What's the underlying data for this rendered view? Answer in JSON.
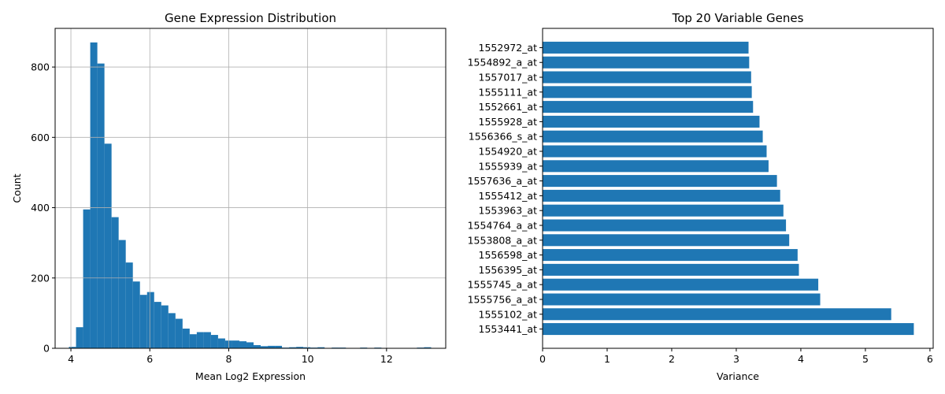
{
  "chart_data": [
    {
      "type": "bar",
      "subtype": "histogram",
      "title": "Gene Expression Distribution",
      "xlabel": "Mean Log2 Expression",
      "ylabel": "Count",
      "xlim": [
        3.6,
        13.5
      ],
      "ylim": [
        0,
        910
      ],
      "xticks": [
        4,
        6,
        8,
        10,
        12
      ],
      "yticks": [
        0,
        200,
        400,
        600,
        800
      ],
      "grid": true,
      "color": "#1f77b4",
      "bin_start": 3.95,
      "bin_width": 0.18,
      "counts": [
        4,
        60,
        395,
        870,
        810,
        582,
        373,
        308,
        244,
        190,
        152,
        160,
        132,
        122,
        100,
        84,
        56,
        40,
        46,
        46,
        38,
        28,
        22,
        22,
        20,
        17,
        9,
        6,
        7,
        7,
        2,
        3,
        4,
        3,
        2,
        3,
        1,
        2,
        2,
        1,
        1,
        2,
        1,
        2,
        1,
        0,
        1,
        1,
        0,
        2,
        3
      ]
    },
    {
      "type": "bar",
      "orientation": "horizontal",
      "title": "Top 20 Variable Genes",
      "xlabel": "Variance",
      "ylabel": "",
      "xlim": [
        0,
        6.05
      ],
      "xticks": [
        0,
        1,
        2,
        3,
        4,
        5,
        6
      ],
      "grid": false,
      "color": "#1f77b4",
      "categories": [
        "1552972_at",
        "1554892_a_at",
        "1557017_at",
        "1555111_at",
        "1552661_at",
        "1555928_at",
        "1556366_s_at",
        "1554920_at",
        "1555939_at",
        "1557636_a_at",
        "1555412_at",
        "1553963_at",
        "1554764_a_at",
        "1553808_a_at",
        "1556598_at",
        "1556395_at",
        "1555745_a_at",
        "1555756_a_at",
        "1555102_at",
        "1553441_at"
      ],
      "values": [
        3.19,
        3.2,
        3.23,
        3.24,
        3.26,
        3.36,
        3.41,
        3.47,
        3.5,
        3.63,
        3.68,
        3.73,
        3.77,
        3.82,
        3.95,
        3.97,
        4.27,
        4.3,
        5.4,
        5.75
      ]
    }
  ]
}
